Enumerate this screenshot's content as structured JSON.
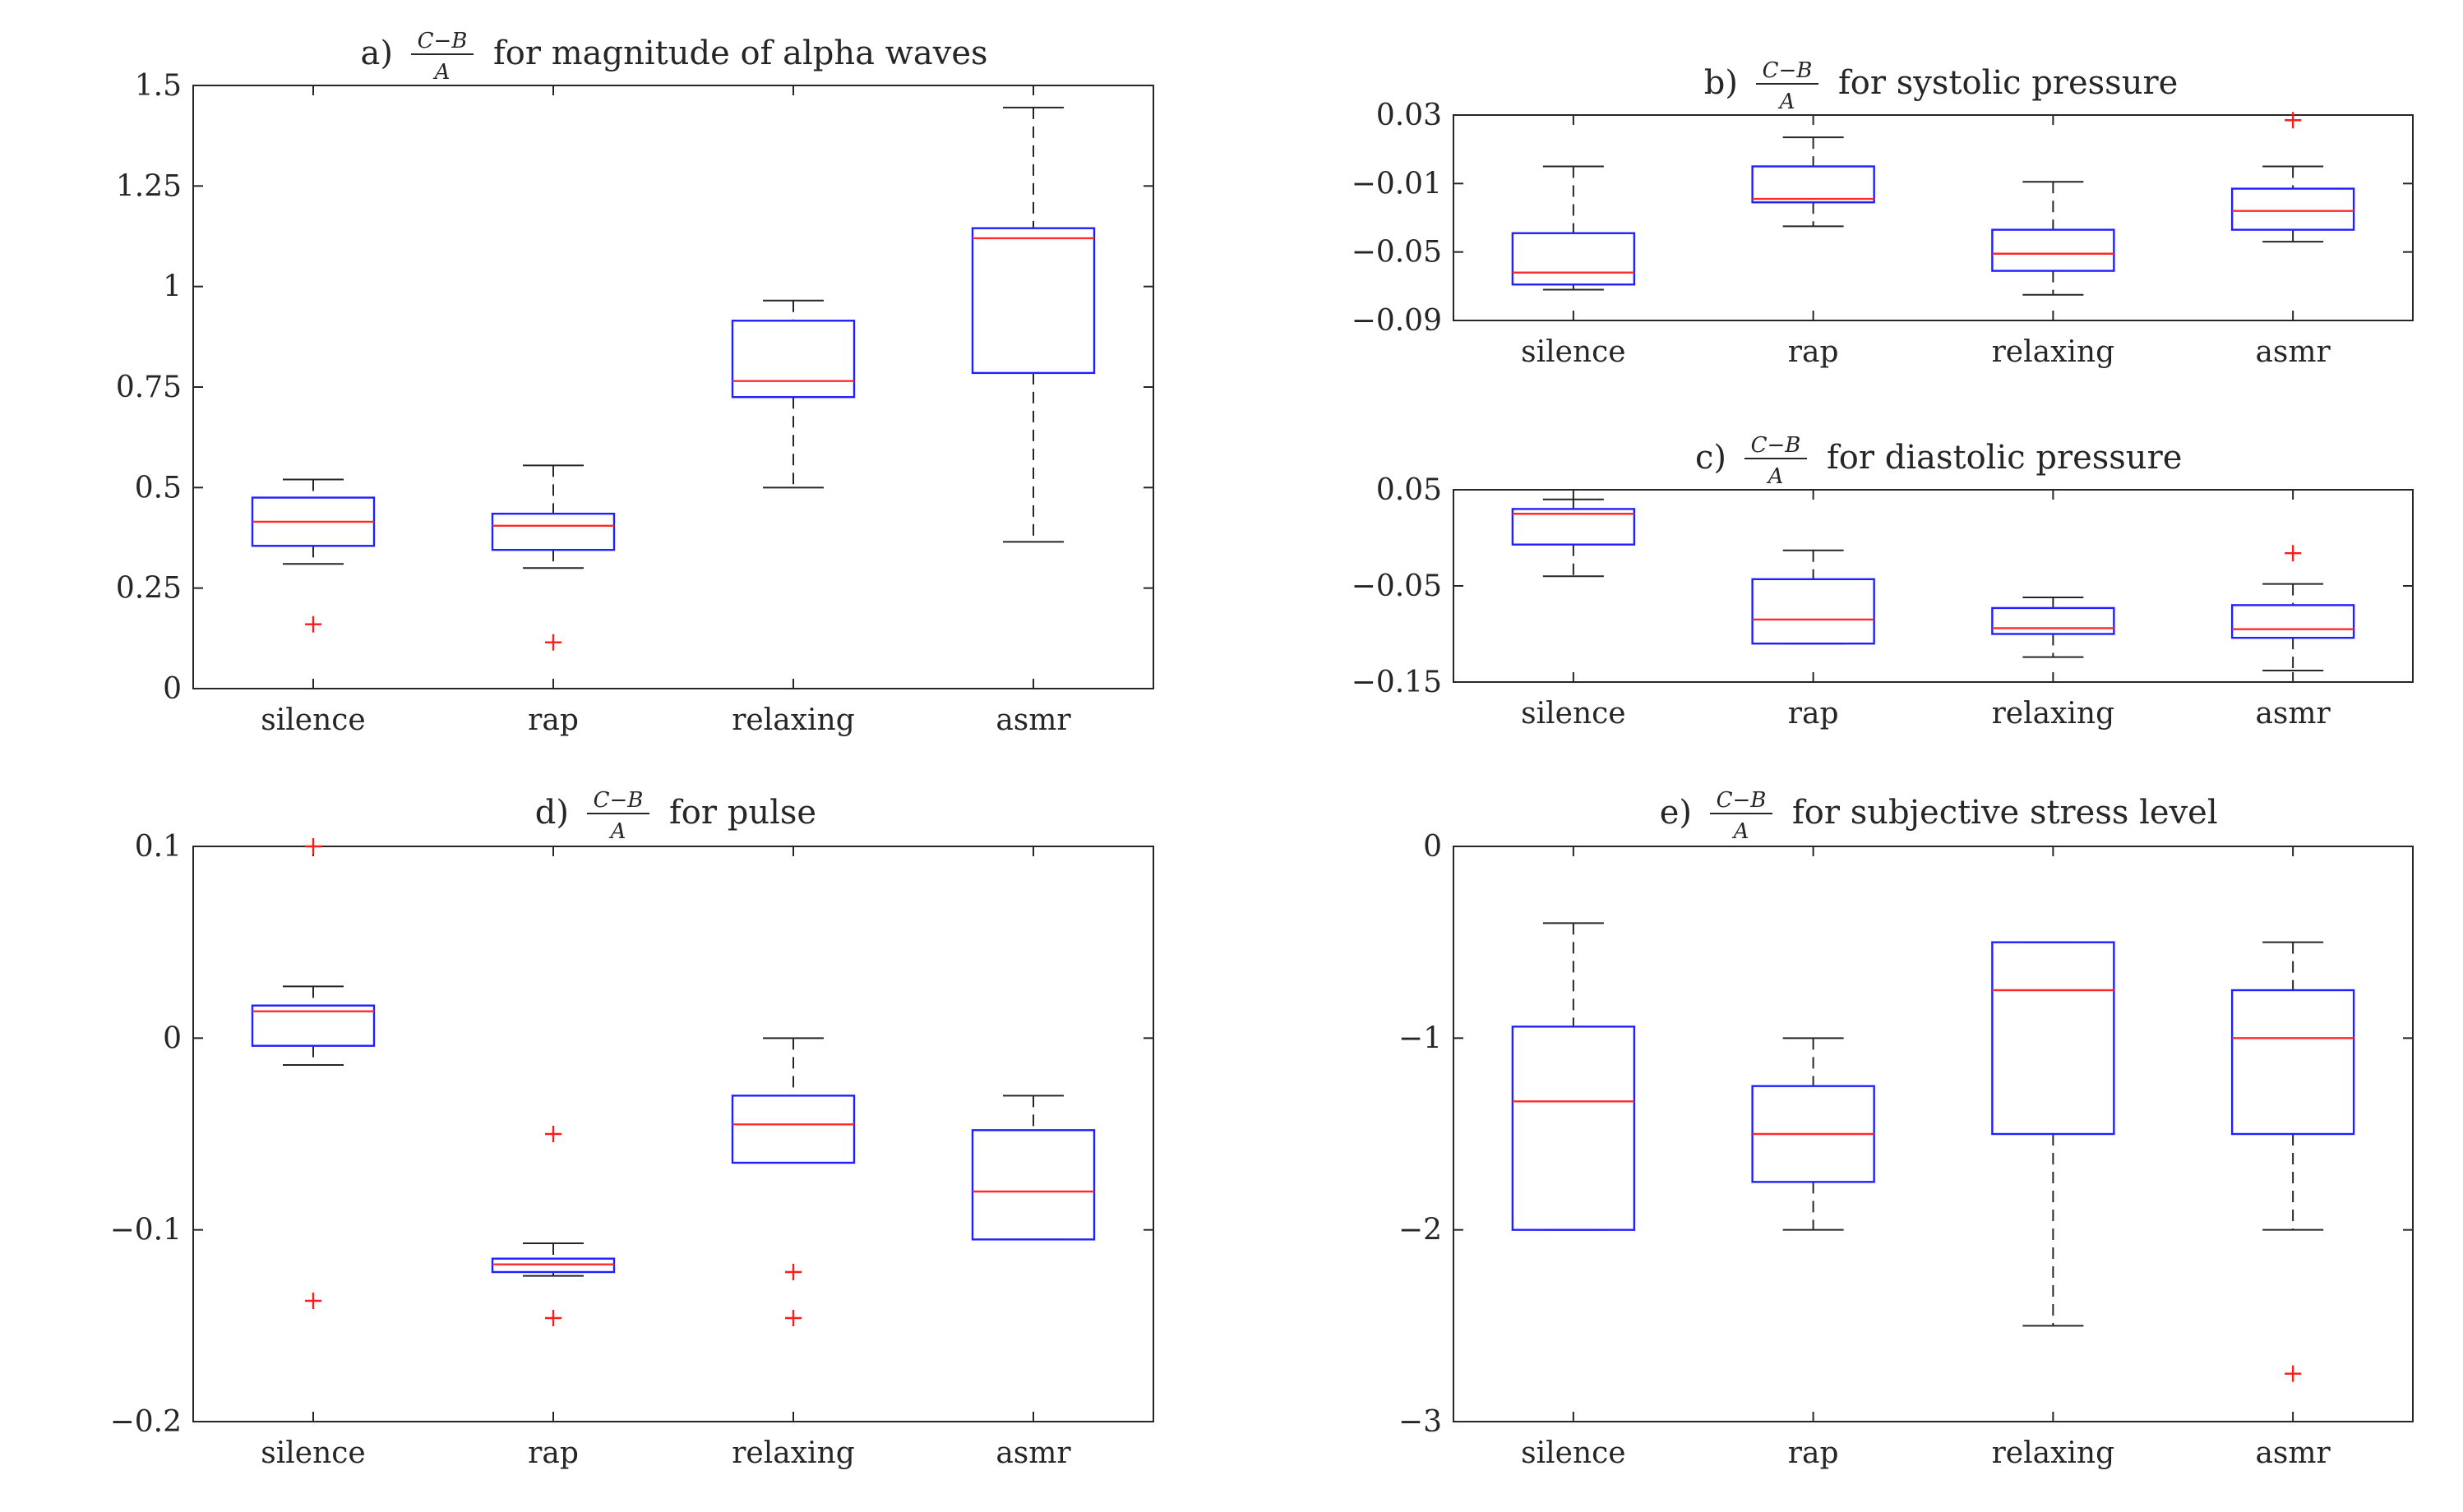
{
  "chart_data": [
    {
      "type": "boxplot",
      "prefix": "a)",
      "fraction": {
        "numerator": "C−B",
        "denominator": "A"
      },
      "title_suffix": "for magnitude of alpha waves",
      "categories": [
        "silence",
        "rap",
        "relaxing",
        "asmr"
      ],
      "ylim": [
        0,
        1.5
      ],
      "yticks": [
        0,
        0.25,
        0.5,
        0.75,
        1,
        1.25,
        1.5
      ],
      "ytick_labels": [
        "0",
        "0.25",
        "0.5",
        "0.75",
        "1",
        "1.25",
        "1.5"
      ],
      "boxes": [
        {
          "whisker_low": 0.31,
          "q1": 0.355,
          "median": 0.415,
          "q3": 0.475,
          "whisker_high": 0.52,
          "outliers": [
            0.16
          ]
        },
        {
          "whisker_low": 0.3,
          "q1": 0.345,
          "median": 0.405,
          "q3": 0.435,
          "whisker_high": 0.555,
          "outliers": [
            0.115
          ]
        },
        {
          "whisker_low": 0.5,
          "q1": 0.725,
          "median": 0.765,
          "q3": 0.915,
          "whisker_high": 0.965,
          "outliers": []
        },
        {
          "whisker_low": 0.365,
          "q1": 0.785,
          "median": 1.12,
          "q3": 1.145,
          "whisker_high": 1.445,
          "outliers": []
        }
      ]
    },
    {
      "type": "boxplot",
      "prefix": "b)",
      "fraction": {
        "numerator": "C−B",
        "denominator": "A"
      },
      "title_suffix": "for systolic pressure",
      "categories": [
        "silence",
        "rap",
        "relaxing",
        "asmr"
      ],
      "ylim": [
        -0.09,
        0.03
      ],
      "yticks": [
        -0.09,
        -0.05,
        -0.01,
        0.03
      ],
      "ytick_labels": [
        "−0.09",
        "−0.05",
        "−0.01",
        "0.03"
      ],
      "boxes": [
        {
          "whisker_low": -0.072,
          "q1": -0.069,
          "median": -0.062,
          "q3": -0.039,
          "whisker_high": 0.0,
          "outliers": []
        },
        {
          "whisker_low": -0.035,
          "q1": -0.021,
          "median": -0.019,
          "q3": 0.0,
          "whisker_high": 0.017,
          "outliers": []
        },
        {
          "whisker_low": -0.075,
          "q1": -0.061,
          "median": -0.051,
          "q3": -0.037,
          "whisker_high": -0.009,
          "outliers": []
        },
        {
          "whisker_low": -0.044,
          "q1": -0.037,
          "median": -0.026,
          "q3": -0.013,
          "whisker_high": 0.0,
          "outliers": [
            0.027
          ]
        }
      ]
    },
    {
      "type": "boxplot",
      "prefix": "c)",
      "fraction": {
        "numerator": "C−B",
        "denominator": "A"
      },
      "title_suffix": "for diastolic pressure",
      "categories": [
        "silence",
        "rap",
        "relaxing",
        "asmr"
      ],
      "ylim": [
        -0.15,
        0.05
      ],
      "yticks": [
        -0.15,
        -0.05,
        0.05
      ],
      "ytick_labels": [
        "−0.15",
        "−0.05",
        "0.05"
      ],
      "boxes": [
        {
          "whisker_low": -0.04,
          "q1": -0.007,
          "median": 0.025,
          "q3": 0.03,
          "whisker_high": 0.04,
          "outliers": []
        },
        {
          "whisker_low": -0.11,
          "q1": -0.11,
          "median": -0.085,
          "q3": -0.043,
          "whisker_high": -0.013,
          "outliers": []
        },
        {
          "whisker_low": -0.124,
          "q1": -0.1,
          "median": -0.094,
          "q3": -0.073,
          "whisker_high": -0.062,
          "outliers": []
        },
        {
          "whisker_low": -0.138,
          "q1": -0.104,
          "median": -0.095,
          "q3": -0.07,
          "whisker_high": -0.048,
          "outliers": [
            -0.016
          ]
        }
      ]
    },
    {
      "type": "boxplot",
      "prefix": "d)",
      "fraction": {
        "numerator": "C−B",
        "denominator": "A"
      },
      "title_suffix": "for pulse",
      "categories": [
        "silence",
        "rap",
        "relaxing",
        "asmr"
      ],
      "ylim": [
        -0.2,
        0.1
      ],
      "yticks": [
        -0.2,
        -0.1,
        0,
        0.1
      ],
      "ytick_labels": [
        "−0.2",
        "−0.1",
        "0",
        "0.1"
      ],
      "boxes": [
        {
          "whisker_low": -0.014,
          "q1": -0.004,
          "median": 0.014,
          "q3": 0.017,
          "whisker_high": 0.027,
          "outliers": [
            0.1,
            -0.137
          ]
        },
        {
          "whisker_low": -0.124,
          "q1": -0.122,
          "median": -0.118,
          "q3": -0.115,
          "whisker_high": -0.107,
          "outliers": [
            -0.05,
            -0.146
          ]
        },
        {
          "whisker_low": -0.065,
          "q1": -0.065,
          "median": -0.045,
          "q3": -0.03,
          "whisker_high": 0.0,
          "outliers": [
            -0.122,
            -0.146
          ]
        },
        {
          "whisker_low": -0.105,
          "q1": -0.105,
          "median": -0.08,
          "q3": -0.048,
          "whisker_high": -0.03,
          "outliers": []
        }
      ]
    },
    {
      "type": "boxplot",
      "prefix": "e)",
      "fraction": {
        "numerator": "C−B",
        "denominator": "A"
      },
      "title_suffix": "for subjective stress level",
      "categories": [
        "silence",
        "rap",
        "relaxing",
        "asmr"
      ],
      "ylim": [
        -3,
        0
      ],
      "yticks": [
        -3,
        -2,
        -1,
        0
      ],
      "ytick_labels": [
        "−3",
        "−2",
        "−1",
        "0"
      ],
      "boxes": [
        {
          "whisker_low": -2.0,
          "q1": -2.0,
          "median": -1.33,
          "q3": -0.94,
          "whisker_high": -0.4,
          "outliers": []
        },
        {
          "whisker_low": -2.0,
          "q1": -1.75,
          "median": -1.5,
          "q3": -1.25,
          "whisker_high": -1.0,
          "outliers": []
        },
        {
          "whisker_low": -2.5,
          "q1": -1.5,
          "median": -0.75,
          "q3": -0.5,
          "whisker_high": -0.5,
          "outliers": []
        },
        {
          "whisker_low": -2.0,
          "q1": -1.5,
          "median": -1.0,
          "q3": -0.75,
          "whisker_high": -0.5,
          "outliers": [
            -2.75
          ]
        }
      ]
    }
  ]
}
